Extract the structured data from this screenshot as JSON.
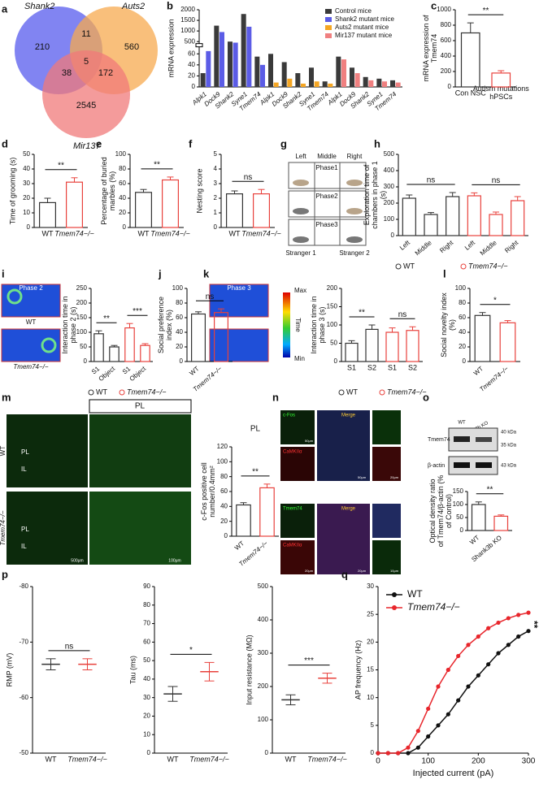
{
  "panel_letters": [
    "a",
    "b",
    "c",
    "d",
    "e",
    "f",
    "g",
    "h",
    "i",
    "j",
    "k",
    "l",
    "m",
    "n",
    "o",
    "p",
    "q"
  ],
  "venn": {
    "sets": [
      "Shank2",
      "Auts2",
      "Mir137"
    ],
    "counts": [
      "210",
      "11",
      "560",
      "38",
      "5",
      "172",
      "2545"
    ]
  },
  "images": {
    "g": {
      "columns": [
        "Left",
        "Middle",
        "Right"
      ],
      "phases": [
        "Phase1",
        "Phase2",
        "Phase3"
      ],
      "strangers": [
        "Stranger 1",
        "Stranger 2"
      ]
    },
    "i": {
      "title": "Phase 2",
      "rows": [
        "WT",
        "Tmem74−/−"
      ]
    },
    "k": {
      "title": "Phase 3",
      "colorbar": [
        "Max",
        "Time",
        "Min"
      ]
    },
    "m": {
      "header": "PL",
      "rows": [
        "WT",
        "Tmem74−/−"
      ],
      "regions": [
        "PL",
        "IL",
        "PL",
        "IL"
      ],
      "scales": [
        "500μm",
        "100μm"
      ]
    },
    "n": {
      "top": [
        "c-Fos",
        "Merge",
        "CaMKIIα"
      ],
      "top_scales": [
        "50μm",
        "50μm",
        "20μm"
      ],
      "bottom": [
        "Tmem74",
        "Merge",
        "CaMKIIα"
      ],
      "bottom_scales": [
        "20μm",
        "20μm",
        "10μm"
      ]
    },
    "o": {
      "lanes": [
        "WT",
        "Shank3b KO"
      ],
      "proteins": [
        "Tmem74",
        "β-actin"
      ],
      "sizes": [
        "40 kDa",
        "35 kDa",
        "43 kDa"
      ]
    }
  },
  "chart_data": [
    {
      "type": "bar",
      "ylabel": "mRNA expression",
      "categories": [
        "Alpk1",
        "Dock9",
        "Shank2",
        "Syne1",
        "Tmem74",
        "Alpk1",
        "Dock9",
        "Shank2",
        "Syne1",
        "Tmem74",
        "Alpk1",
        "Dock9",
        "Shank2",
        "Syne1",
        "Tmem74"
      ],
      "series": [
        {
          "name": "Control mice",
          "color": "#3a3a3a",
          "values": [
            25,
            1250,
            500,
            1800,
            55,
            60,
            45,
            25,
            35,
            10,
            55,
            35,
            18,
            15,
            12
          ]
        },
        {
          "name": "Shank2 mutant mice",
          "color": "#5b5ce6",
          "values": [
            65,
            950,
            450,
            1200,
            40,
            null,
            null,
            null,
            null,
            null,
            null,
            null,
            null,
            null,
            null
          ]
        },
        {
          "name": "Auts2 mutant mice",
          "color": "#f5a623",
          "values": [
            null,
            null,
            null,
            null,
            null,
            8,
            15,
            6,
            10,
            6,
            null,
            null,
            null,
            null,
            null
          ]
        },
        {
          "name": "Mir137 mutant mice",
          "color": "#f08080",
          "values": [
            null,
            null,
            null,
            null,
            null,
            null,
            null,
            null,
            null,
            null,
            50,
            25,
            12,
            10,
            8
          ]
        }
      ],
      "ylim": [
        0,
        2000
      ],
      "axis_break": [
        70,
        400
      ],
      "yticks": [
        0,
        20,
        40,
        60,
        500,
        1000,
        1500,
        2000
      ]
    },
    {
      "type": "bar",
      "ylabel": "mRNA expression of Tmem74",
      "categories": [
        "Con NSC",
        "Autism mutations hPSCs"
      ],
      "values": [
        700,
        180
      ],
      "errors": [
        130,
        30
      ],
      "colors": [
        "#333333",
        "#e8413c"
      ],
      "ylim": [
        0,
        1000
      ],
      "yticks": [
        0,
        200,
        400,
        600,
        800,
        1000
      ],
      "significance": [
        "**"
      ]
    },
    {
      "type": "bar",
      "ylabel": "Time of grooming (s)",
      "categories": [
        "WT",
        "Tmem74−/−"
      ],
      "values": [
        17,
        31
      ],
      "errors": [
        3,
        3
      ],
      "colors": [
        "#333333",
        "#e8413c"
      ],
      "ylim": [
        0,
        50
      ],
      "yticks": [
        0,
        10,
        20,
        30,
        40,
        50
      ],
      "significance": [
        "**"
      ]
    },
    {
      "type": "bar",
      "ylabel": "Percentage of buried marbles (%)",
      "categories": [
        "WT",
        "Tmem74−/−"
      ],
      "values": [
        48,
        65
      ],
      "errors": [
        4,
        4
      ],
      "colors": [
        "#333333",
        "#e8413c"
      ],
      "ylim": [
        0,
        100
      ],
      "yticks": [
        0,
        20,
        40,
        60,
        80,
        100
      ],
      "significance": [
        "**"
      ]
    },
    {
      "type": "bar",
      "ylabel": "Nesting score",
      "categories": [
        "WT",
        "Tmem74−/−"
      ],
      "values": [
        2.3,
        2.3
      ],
      "errors": [
        0.2,
        0.3
      ],
      "colors": [
        "#333333",
        "#e8413c"
      ],
      "ylim": [
        0,
        5
      ],
      "yticks": [
        0,
        1,
        2,
        3,
        4,
        5
      ],
      "significance": [
        "ns"
      ]
    },
    {
      "type": "bar",
      "ylabel": "Exploration time of chambers in phase 1 (s)",
      "categories": [
        "Left",
        "Middle",
        "Right",
        "Left",
        "Middle",
        "Right"
      ],
      "values": [
        230,
        130,
        240,
        245,
        130,
        215
      ],
      "errors": [
        20,
        12,
        25,
        18,
        15,
        25
      ],
      "colors": [
        "#333333",
        "#333333",
        "#333333",
        "#e8413c",
        "#e8413c",
        "#e8413c"
      ],
      "legend": [
        "WT",
        "Tmem74−/−"
      ],
      "ylim": [
        0,
        500
      ],
      "yticks": [
        0,
        100,
        200,
        300,
        400,
        500
      ],
      "significance": [
        "ns",
        "ns"
      ]
    },
    {
      "type": "bar",
      "ylabel": "Interaction time in phase 2 (s)",
      "categories": [
        "S1",
        "Object",
        "S1",
        "Object"
      ],
      "values": [
        95,
        50,
        115,
        55
      ],
      "errors": [
        10,
        5,
        15,
        6
      ],
      "colors": [
        "#333333",
        "#333333",
        "#e8413c",
        "#e8413c"
      ],
      "legend": [
        "WT",
        "Tmem74−/−"
      ],
      "ylim": [
        0,
        250
      ],
      "yticks": [
        0,
        50,
        100,
        150,
        200,
        250
      ],
      "significance": [
        "**",
        "***"
      ]
    },
    {
      "type": "bar",
      "ylabel": "Social preference index (%)",
      "categories": [
        "WT",
        "Tmem74−/−"
      ],
      "values": [
        65,
        67
      ],
      "errors": [
        3,
        5
      ],
      "colors": [
        "#333333",
        "#e8413c"
      ],
      "ylim": [
        0,
        100
      ],
      "yticks": [
        0,
        20,
        40,
        60,
        80,
        100
      ],
      "significance": [
        "ns"
      ]
    },
    {
      "type": "bar",
      "ylabel": "Interaction time in phase 3 (s)",
      "categories": [
        "S1",
        "S2",
        "S1",
        "S2"
      ],
      "values": [
        50,
        88,
        80,
        85
      ],
      "errors": [
        7,
        12,
        12,
        10
      ],
      "colors": [
        "#333333",
        "#333333",
        "#e8413c",
        "#e8413c"
      ],
      "legend": [
        "WT",
        "Tmem74−/−"
      ],
      "ylim": [
        0,
        200
      ],
      "yticks": [
        0,
        50,
        100,
        150,
        200
      ],
      "significance": [
        "**",
        "ns"
      ]
    },
    {
      "type": "bar",
      "ylabel": "Social novelty index (%)",
      "categories": [
        "WT",
        "Tmem74−/−"
      ],
      "values": [
        63,
        53
      ],
      "errors": [
        4,
        3
      ],
      "colors": [
        "#333333",
        "#e8413c"
      ],
      "ylim": [
        0,
        100
      ],
      "yticks": [
        0,
        20,
        40,
        60,
        80,
        100
      ],
      "significance": [
        "*"
      ]
    },
    {
      "type": "bar",
      "title": "PL",
      "ylabel": "c-Fos positive cell number/0.4mm²",
      "categories": [
        "WT",
        "Tmem74−/−"
      ],
      "values": [
        42,
        65
      ],
      "errors": [
        3,
        5
      ],
      "colors": [
        "#333333",
        "#e8413c"
      ],
      "ylim": [
        0,
        120
      ],
      "yticks": [
        0,
        20,
        40,
        60,
        80,
        100,
        120
      ],
      "significance": [
        "**"
      ]
    },
    {
      "type": "bar",
      "ylabel": "Optical density ratio of Tmem74/β-actin (% of Control)",
      "categories": [
        "WT",
        "Shank3b KO"
      ],
      "values": [
        100,
        55
      ],
      "errors": [
        10,
        5
      ],
      "colors": [
        "#333333",
        "#e8413c"
      ],
      "ylim": [
        0,
        150
      ],
      "yticks": [
        0,
        50,
        100,
        150
      ],
      "significance": [
        "**"
      ]
    },
    {
      "type": "dot",
      "ylabel": "RMP (mV)",
      "categories": [
        "WT",
        "Tmem74−/−"
      ],
      "values": [
        -66,
        -66
      ],
      "errors": [
        1,
        1
      ],
      "colors": [
        "#333333",
        "#e8413c"
      ],
      "ylim": [
        -50,
        -80
      ],
      "yticks": [
        -50,
        -60,
        -70,
        -80
      ],
      "significance": [
        "ns"
      ]
    },
    {
      "type": "dot",
      "ylabel": "Tau (ms)",
      "categories": [
        "WT",
        "Tmem74−/−"
      ],
      "values": [
        32,
        44
      ],
      "errors": [
        4,
        5
      ],
      "colors": [
        "#333333",
        "#e8413c"
      ],
      "ylim": [
        0,
        90
      ],
      "yticks": [
        0,
        10,
        20,
        30,
        40,
        50,
        60,
        70,
        80,
        90
      ],
      "significance": [
        "*"
      ]
    },
    {
      "type": "dot",
      "ylabel": "Input resistance (MΩ)",
      "categories": [
        "WT",
        "Tmem74−/−"
      ],
      "values": [
        160,
        225
      ],
      "errors": [
        15,
        15
      ],
      "colors": [
        "#333333",
        "#e8413c"
      ],
      "ylim": [
        0,
        500
      ],
      "yticks": [
        0,
        100,
        200,
        300,
        400,
        500
      ],
      "significance": [
        "***"
      ]
    },
    {
      "type": "line",
      "xlabel": "Injected current (pA)",
      "ylabel": "AP frequency (Hz)",
      "x": [
        0,
        20,
        40,
        60,
        80,
        100,
        120,
        140,
        160,
        180,
        200,
        220,
        240,
        260,
        280,
        300
      ],
      "series": [
        {
          "name": "WT",
          "color": "#111111",
          "values": [
            0,
            0,
            0,
            0,
            1,
            3,
            5,
            7,
            9.5,
            12,
            14,
            16,
            18,
            19.5,
            21,
            22
          ]
        },
        {
          "name": "Tmem74−/−",
          "color": "#e8262c",
          "values": [
            0,
            0,
            0,
            1,
            4,
            8,
            12,
            15,
            17.5,
            19.5,
            21,
            22.5,
            23.5,
            24.3,
            24.9,
            25.3
          ]
        }
      ],
      "xlim": [
        0,
        300
      ],
      "xticks": [
        0,
        100,
        200,
        300
      ],
      "ylim": [
        0,
        30
      ],
      "yticks": [
        0,
        5,
        10,
        15,
        20,
        25,
        30
      ],
      "significance": [
        "**"
      ]
    }
  ]
}
